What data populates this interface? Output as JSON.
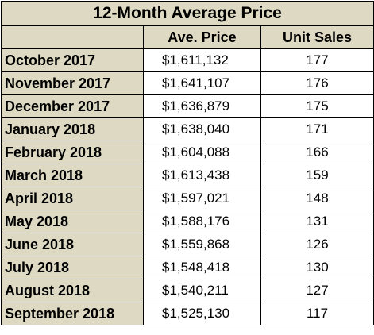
{
  "title": "12-Month Average Price",
  "columns": [
    "",
    "Ave. Price",
    "Unit Sales"
  ],
  "rows": [
    {
      "month": "October 2017",
      "price": "$1,611,132",
      "sales": "177"
    },
    {
      "month": "November 2017",
      "price": "$1,641,107",
      "sales": "176"
    },
    {
      "month": "December 2017",
      "price": "$1,636,879",
      "sales": "175"
    },
    {
      "month": "January 2018",
      "price": "$1,638,040",
      "sales": "171"
    },
    {
      "month": "February 2018",
      "price": "$1,604,088",
      "sales": "166"
    },
    {
      "month": "March 2018",
      "price": "$1,613,438",
      "sales": "159"
    },
    {
      "month": "April 2018",
      "price": "$1,597,021",
      "sales": "148"
    },
    {
      "month": "May 2018",
      "price": "$1,588,176",
      "sales": "131"
    },
    {
      "month": "June 2018",
      "price": "$1,559,868",
      "sales": "126"
    },
    {
      "month": "July 2018",
      "price": "$1,548,418",
      "sales": "130"
    },
    {
      "month": "August 2018",
      "price": "$1,540,211",
      "sales": "127"
    },
    {
      "month": "September 2018",
      "price": "$1,525,130",
      "sales": "117"
    }
  ],
  "colors": {
    "header_fill": "#ddd9c3",
    "cell_fill": "#ffffff",
    "border": "#000000"
  }
}
